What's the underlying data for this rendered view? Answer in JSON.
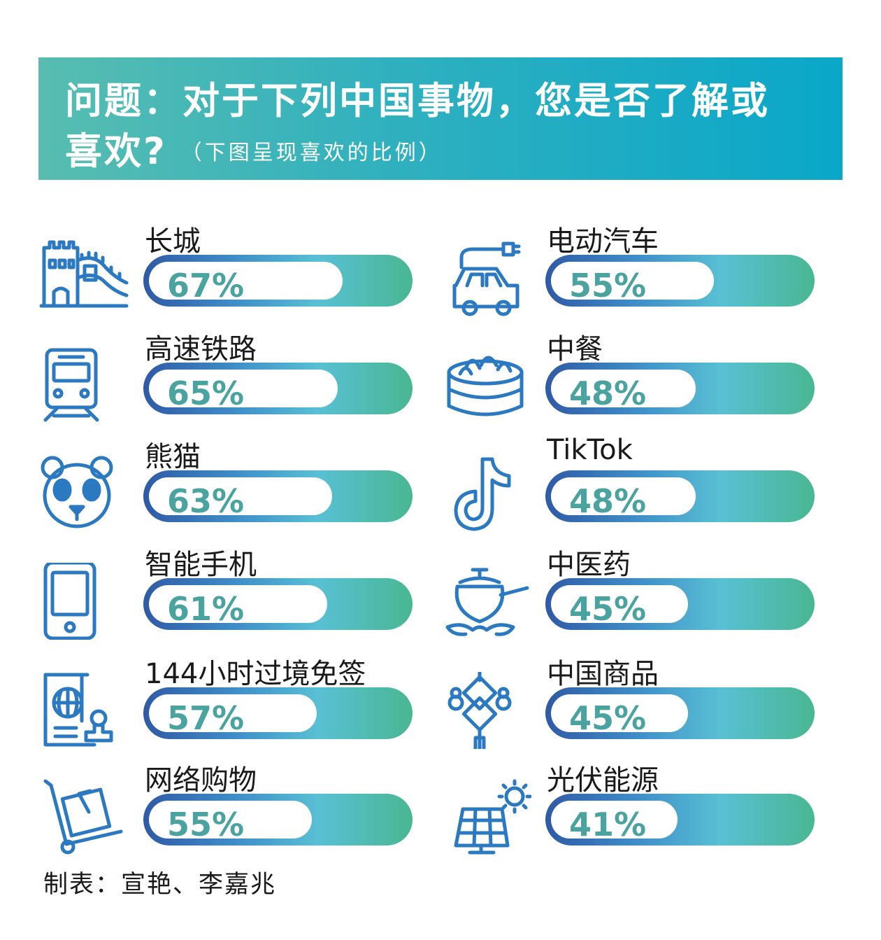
{
  "header": {
    "title_line1": "问题：对于下列中国事物，您是否了解或",
    "title_line2": "喜欢?",
    "subtitle": "（下图呈现喜欢的比例）"
  },
  "chart_data": {
    "type": "bar",
    "title": "问题：对于下列中国事物，您是否了解或喜欢?",
    "subtitle": "（下图呈现喜欢的比例）",
    "unit": "%",
    "ylim": [
      0,
      100
    ],
    "items": [
      {
        "label": "长城",
        "value": 67,
        "value_label": "67%",
        "icon": "great-wall-icon"
      },
      {
        "label": "高速铁路",
        "value": 65,
        "value_label": "65%",
        "icon": "train-icon"
      },
      {
        "label": "熊猫",
        "value": 63,
        "value_label": "63%",
        "icon": "panda-icon"
      },
      {
        "label": "智能手机",
        "value": 61,
        "value_label": "61%",
        "icon": "smartphone-icon"
      },
      {
        "label": "144小时过境免签",
        "value": 57,
        "value_label": "57%",
        "icon": "passport-icon"
      },
      {
        "label": "网络购物",
        "value": 55,
        "value_label": "55%",
        "icon": "hand-truck-icon"
      },
      {
        "label": "电动汽车",
        "value": 55,
        "value_label": "55%",
        "icon": "electric-car-icon"
      },
      {
        "label": "中餐",
        "value": 48,
        "value_label": "48%",
        "icon": "steamer-bun-icon"
      },
      {
        "label": "TikTok",
        "value": 48,
        "value_label": "48%",
        "icon": "tiktok-icon"
      },
      {
        "label": "中医药",
        "value": 45,
        "value_label": "45%",
        "icon": "herbal-pot-icon"
      },
      {
        "label": "中国商品",
        "value": 45,
        "value_label": "45%",
        "icon": "chinese-knot-icon"
      },
      {
        "label": "光伏能源",
        "value": 41,
        "value_label": "41%",
        "icon": "solar-panel-icon"
      }
    ]
  },
  "colors": {
    "header_start": "#58bdb0",
    "header_end": "#0aa7c9",
    "bar_start": "#2f5aa6",
    "bar_end": "#49b792",
    "value_text": "#4aa39e",
    "icon": "#2a79c1"
  },
  "footer": {
    "credit": "制表：宣艳、李嘉兆"
  }
}
